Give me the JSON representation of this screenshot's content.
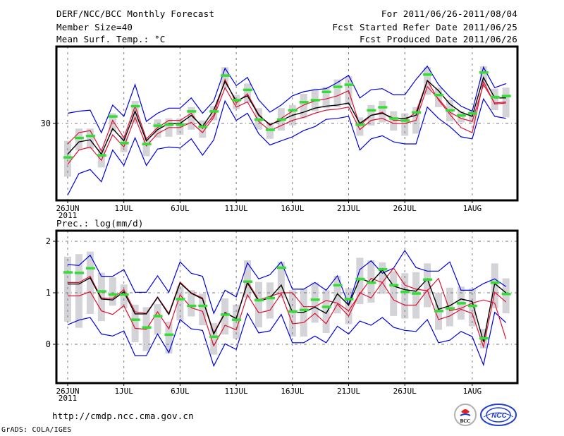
{
  "header": {
    "title": "DERF/NCC/BCC Monthly Forecast",
    "member_size": "Member Size=40",
    "period": "For 2011/06/26-2011/08/04",
    "started": "Fcst Started Refer Date 2011/06/25",
    "produced": "Fcst Produced Date 2011/06/26"
  },
  "footer": {
    "url": "http://cmdp.ncc.cma.gov.cn",
    "credit": "GrADS: COLA/IGES",
    "logo_bcc": "BCC",
    "logo_ncc": "NCC"
  },
  "colors": {
    "spread": "#0000dd",
    "quartile": "#dd1133",
    "mean": "#000000",
    "observed": "#33dd33",
    "box": "#d3d3d8",
    "grid": "#777777"
  },
  "chart_data": [
    {
      "type": "line",
      "title": "Mean Surf. Temp.: °C",
      "xlabel": "",
      "ylabel": "°C",
      "x_ticks": [
        "26JUN",
        "1JUL",
        "6JUL",
        "11JUL",
        "16JUL",
        "21JUL",
        "26JUL",
        "1AUG"
      ],
      "x_tick_days": [
        0,
        5,
        10,
        15,
        20,
        25,
        30,
        36
      ],
      "x_sub_label": "2011",
      "y_ticks": [
        30
      ],
      "ylim": [
        22.5,
        37.5
      ],
      "grid": true,
      "days": 40,
      "series": [
        {
          "name": "max",
          "values": [
            31.0,
            31.2,
            31.3,
            29.1,
            31.8,
            30.7,
            33.8,
            30.2,
            31.0,
            31.5,
            31.5,
            32.5,
            31.0,
            32.2,
            35.4,
            33.7,
            34.5,
            32.3,
            31.1,
            31.8,
            32.7,
            33.1,
            33.3,
            33.4,
            34.0,
            34.7,
            32.5,
            33.3,
            33.4,
            32.8,
            32.8,
            34.3,
            35.6,
            33.8,
            32.6,
            31.7,
            31.2,
            35.5,
            33.5,
            33.9
          ]
        },
        {
          "name": "upper_quartile",
          "values": [
            28.0,
            29.1,
            29.3,
            27.3,
            30.3,
            28.6,
            31.7,
            28.5,
            29.6,
            30.3,
            30.3,
            31.0,
            29.5,
            30.8,
            34.3,
            32.0,
            32.9,
            30.9,
            29.8,
            30.5,
            31.2,
            31.8,
            32.2,
            32.4,
            32.7,
            33.2,
            29.8,
            30.8,
            31.1,
            30.3,
            30.3,
            31.1,
            34.2,
            32.3,
            30.9,
            29.6,
            29.1,
            34.1,
            31.9,
            32.0
          ]
        },
        {
          "name": "mean",
          "values": [
            27.0,
            28.2,
            28.4,
            27.0,
            29.5,
            28.3,
            31.2,
            28.3,
            29.4,
            30.0,
            30.0,
            30.8,
            29.7,
            31.3,
            34.1,
            32.2,
            32.7,
            30.8,
            29.9,
            30.3,
            30.8,
            31.1,
            31.5,
            31.7,
            31.8,
            32.0,
            30.0,
            30.8,
            31.0,
            30.5,
            30.5,
            30.8,
            34.2,
            33.2,
            31.9,
            31.1,
            30.7,
            34.5,
            32.5,
            32.5
          ]
        },
        {
          "name": "lower_quartile",
          "values": [
            26.0,
            27.4,
            27.7,
            26.4,
            28.9,
            27.7,
            30.6,
            27.8,
            29.0,
            29.6,
            29.6,
            30.1,
            29.1,
            30.6,
            33.5,
            31.6,
            32.1,
            30.2,
            29.3,
            29.8,
            30.3,
            30.6,
            31.0,
            31.3,
            31.4,
            31.6,
            29.4,
            30.3,
            30.5,
            30.0,
            30.0,
            30.3,
            33.6,
            32.4,
            31.1,
            30.5,
            30.2,
            33.8,
            32.0,
            32.1
          ]
        },
        {
          "name": "min",
          "values": [
            23.0,
            25.1,
            25.5,
            24.3,
            27.4,
            25.9,
            28.6,
            25.9,
            27.5,
            27.7,
            27.6,
            28.5,
            26.9,
            28.4,
            32.2,
            30.3,
            31.0,
            29.0,
            27.9,
            28.3,
            28.7,
            29.3,
            29.7,
            30.4,
            30.5,
            30.7,
            27.4,
            28.5,
            28.8,
            28.2,
            28.0,
            28.0,
            31.6,
            30.5,
            29.7,
            28.7,
            28.5,
            32.4,
            30.7,
            30.5
          ]
        },
        {
          "name": "observed",
          "values": [
            26.7,
            28.6,
            28.8,
            26.9,
            30.7,
            28.1,
            31.7,
            28.0,
            29.8,
            29.9,
            29.9,
            31.2,
            29.7,
            31.2,
            34.7,
            32.3,
            33.3,
            30.4,
            29.4,
            30.4,
            31.3,
            32.1,
            32.3,
            33.1,
            33.6,
            33.8,
            29.9,
            31.3,
            31.6,
            30.5,
            30.3,
            31.1,
            34.8,
            32.8,
            31.3,
            30.8,
            31.0,
            35.0,
            32.6,
            32.7
          ]
        },
        {
          "name": "box_top",
          "values": [
            28.3,
            29.5,
            29.5,
            27.5,
            31.0,
            28.8,
            32.2,
            28.5,
            30.4,
            30.5,
            30.5,
            31.6,
            30.3,
            31.7,
            35.5,
            32.8,
            33.9,
            31.5,
            30.1,
            31.5,
            31.8,
            32.9,
            33.4,
            33.6,
            34.3,
            34.6,
            30.6,
            31.8,
            32.2,
            31.2,
            31.0,
            31.6,
            35.5,
            33.5,
            32.3,
            31.2,
            31.3,
            35.6,
            33.4,
            33.5
          ]
        },
        {
          "name": "box_bottom",
          "values": [
            24.8,
            27.4,
            27.5,
            25.7,
            29.2,
            27.2,
            30.0,
            26.8,
            28.6,
            28.7,
            28.9,
            29.4,
            28.6,
            30.3,
            33.5,
            31.4,
            32.0,
            29.4,
            28.5,
            29.3,
            29.8,
            30.5,
            31.2,
            31.5,
            31.6,
            31.8,
            28.8,
            29.8,
            30.1,
            29.3,
            28.8,
            29.0,
            32.8,
            31.6,
            30.2,
            30.1,
            30.0,
            33.5,
            31.3,
            30.6
          ]
        }
      ]
    },
    {
      "type": "line",
      "title": "Prec.: log(mm/d)",
      "xlabel": "",
      "ylabel": "log(mm/d)",
      "x_ticks": [
        "26JUN",
        "1JUL",
        "6JUL",
        "11JUL",
        "16JUL",
        "21JUL",
        "26JUL",
        "1AUG"
      ],
      "x_tick_days": [
        0,
        5,
        10,
        15,
        20,
        25,
        30,
        36
      ],
      "x_sub_label": "2011",
      "y_ticks": [
        0,
        1,
        2
      ],
      "ylim": [
        -0.75,
        2.2
      ],
      "grid": true,
      "days": 40,
      "series": [
        {
          "name": "max",
          "values": [
            1.55,
            1.53,
            1.73,
            1.32,
            1.32,
            1.45,
            1.01,
            1.01,
            1.33,
            1.01,
            1.6,
            1.38,
            1.32,
            0.6,
            1.05,
            0.92,
            1.58,
            1.27,
            1.35,
            1.6,
            1.07,
            1.07,
            1.2,
            1.05,
            1.33,
            0.77,
            1.45,
            1.62,
            1.38,
            1.48,
            1.82,
            1.49,
            1.42,
            1.42,
            1.6,
            1.05,
            1.05,
            1.18,
            1.27,
            1.12
          ]
        },
        {
          "name": "upper_quartile",
          "values": [
            1.2,
            1.2,
            1.32,
            0.9,
            0.89,
            1.06,
            0.63,
            0.6,
            0.92,
            0.6,
            1.21,
            1.0,
            0.9,
            0.22,
            0.62,
            0.5,
            1.22,
            0.86,
            0.93,
            1.0,
            1.0,
            0.73,
            0.73,
            0.85,
            0.8,
            0.65,
            0.98,
            1.28,
            1.2,
            1.48,
            1.15,
            1.07,
            1.04,
            1.28,
            0.65,
            0.7,
            0.8,
            0.86,
            0.8,
            0.1
          ]
        },
        {
          "name": "mean",
          "values": [
            1.17,
            1.17,
            1.29,
            0.88,
            0.86,
            1.02,
            0.59,
            0.59,
            0.91,
            0.58,
            1.19,
            0.99,
            0.88,
            0.2,
            0.61,
            0.5,
            1.19,
            0.84,
            0.9,
            1.15,
            0.62,
            0.62,
            0.72,
            0.6,
            0.98,
            0.76,
            1.28,
            1.2,
            1.44,
            1.13,
            1.06,
            1.03,
            1.27,
            0.68,
            0.75,
            0.88,
            0.83,
            0.05,
            1.18,
            1.0
          ]
        },
        {
          "name": "lower_quartile",
          "values": [
            0.94,
            0.94,
            1.02,
            0.65,
            0.58,
            0.75,
            0.31,
            0.29,
            0.63,
            0.3,
            0.96,
            0.71,
            0.64,
            -0.03,
            0.37,
            0.28,
            0.96,
            0.61,
            0.66,
            0.98,
            0.4,
            0.42,
            0.6,
            0.4,
            0.78,
            0.55,
            1.0,
            0.9,
            1.2,
            0.86,
            0.76,
            0.76,
            1.05,
            0.48,
            0.55,
            0.68,
            0.6,
            -0.05,
            1.01,
            0.82
          ]
        },
        {
          "name": "min",
          "values": [
            0.38,
            0.47,
            0.52,
            0.2,
            0.16,
            0.26,
            -0.22,
            -0.22,
            0.2,
            -0.16,
            0.48,
            0.3,
            0.27,
            -0.42,
            0.01,
            -0.1,
            0.6,
            0.22,
            0.26,
            0.58,
            0.03,
            0.03,
            0.16,
            0.03,
            0.35,
            0.2,
            0.45,
            0.37,
            0.52,
            0.33,
            0.27,
            0.25,
            0.48,
            0.03,
            0.08,
            0.25,
            0.15,
            -0.4,
            0.62,
            0.42
          ]
        },
        {
          "name": "observed",
          "values": [
            1.4,
            1.39,
            1.48,
            1.03,
            0.97,
            0.97,
            0.48,
            0.33,
            0.55,
            0.19,
            0.88,
            0.75,
            0.75,
            0.15,
            0.58,
            0.48,
            1.22,
            0.86,
            0.9,
            1.49,
            0.64,
            0.67,
            0.87,
            0.73,
            1.15,
            0.88,
            1.27,
            1.2,
            1.46,
            1.15,
            1.02,
            0.99,
            1.26,
            0.65,
            0.7,
            0.8,
            0.75,
            0.12,
            1.2,
            0.98
          ]
        },
        {
          "name": "box_top",
          "values": [
            1.7,
            1.75,
            1.8,
            1.39,
            1.3,
            1.16,
            0.77,
            0.72,
            0.78,
            0.44,
            1.13,
            1.05,
            0.98,
            0.41,
            0.89,
            0.77,
            1.63,
            1.21,
            1.2,
            1.6,
            1.05,
            1.08,
            1.2,
            1.05,
            1.33,
            1.09,
            1.68,
            1.63,
            1.59,
            1.42,
            1.38,
            1.4,
            1.57,
            1.0,
            1.1,
            1.12,
            1.08,
            0.3,
            1.57,
            1.28
          ]
        },
        {
          "name": "box_bottom",
          "values": [
            0.44,
            0.32,
            0.59,
            0.45,
            0.75,
            0.7,
            0.04,
            -0.13,
            0.19,
            -0.18,
            0.46,
            0.54,
            0.37,
            -0.2,
            0.19,
            0.11,
            0.9,
            0.33,
            0.5,
            0.9,
            0.15,
            0.15,
            0.42,
            0.22,
            0.6,
            0.39,
            0.78,
            0.81,
            0.98,
            0.55,
            0.5,
            0.5,
            0.72,
            0.28,
            0.35,
            0.48,
            0.35,
            -0.08,
            0.7,
            0.6
          ]
        }
      ]
    }
  ]
}
